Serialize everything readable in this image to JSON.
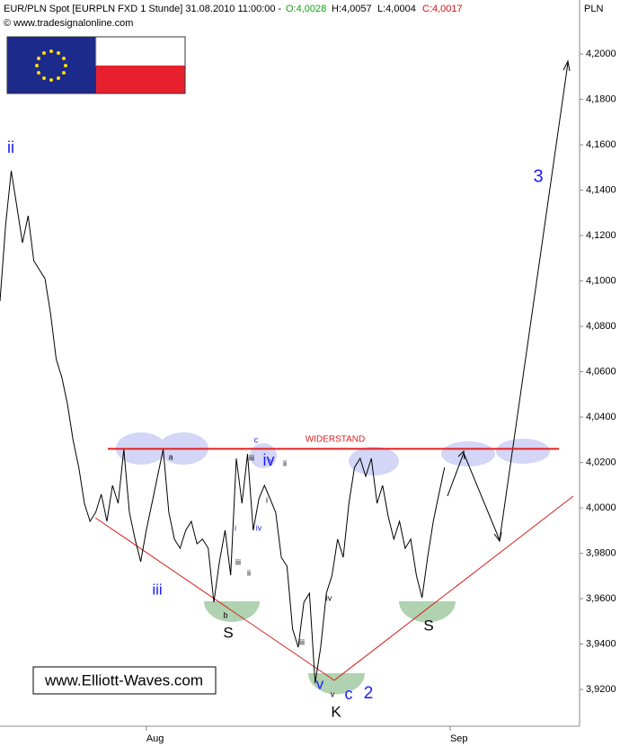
{
  "chart_data": {
    "type": "line",
    "title": "EUR/PLN Spot [EURPLN FXD  1 Stunde] 31.08.2010 11:00:00 -",
    "ohlc_labels": [
      "O:4,0028",
      "H:4,0057",
      "L:4,0004",
      "C:4,0017"
    ],
    "source": "© www.tradesignalonline.com",
    "y_unit": "PLN",
    "series": [
      {
        "name": "EUR/PLN",
        "color": "#000000",
        "values": [
          4.0911,
          4.1248,
          4.1485,
          4.1327,
          4.1168,
          4.1287,
          4.1089,
          4.105,
          4.101,
          4.0852,
          4.0654,
          4.0574,
          4.0456,
          4.0297,
          4.0178,
          4.002,
          3.9941,
          3.998,
          4.006,
          3.9941,
          4.0099,
          4.002,
          4.0258,
          3.998,
          3.9862,
          3.9763,
          3.9901,
          4.002,
          4.0139,
          4.0258,
          3.998,
          3.9862,
          3.9822,
          3.9901,
          3.9941,
          3.9842,
          3.9862,
          3.9822,
          3.9584,
          3.9763,
          3.9901,
          3.9703,
          4.0218,
          4.002,
          4.0238,
          3.9901,
          4.004,
          4.0099,
          4.004,
          3.998,
          3.9782,
          3.9743,
          3.9466,
          3.9386,
          3.9584,
          3.9624,
          3.9228,
          3.9386,
          3.9624,
          3.9703,
          3.9862,
          3.9782,
          4.002,
          4.0178,
          4.0218,
          4.0139,
          4.0218,
          4.002,
          4.0099,
          3.9961,
          3.9862,
          3.9941,
          3.9822,
          3.9862,
          3.9703,
          3.9604,
          3.9782,
          3.9941,
          4.006,
          4.0178
        ]
      }
    ],
    "resistance_level": 4.026,
    "xlim": [
      0,
      103
    ],
    "xticks": [
      {
        "value": 26,
        "label": "Aug"
      },
      {
        "value": 80,
        "label": "Sep"
      }
    ],
    "ylim": [
      3.9038,
      4.2226
    ],
    "yticks": [
      {
        "value": 3.92,
        "label": "3,9200"
      },
      {
        "value": 3.94,
        "label": "3,9400"
      },
      {
        "value": 3.96,
        "label": "3,9600"
      },
      {
        "value": 3.98,
        "label": "3,9800"
      },
      {
        "value": 4.0,
        "label": "4,0000"
      },
      {
        "value": 4.02,
        "label": "4,0200"
      },
      {
        "value": 4.04,
        "label": "4,0400"
      },
      {
        "value": 4.06,
        "label": "4,0600"
      },
      {
        "value": 4.08,
        "label": "4,0800"
      },
      {
        "value": 4.1,
        "label": "4,1000"
      },
      {
        "value": 4.12,
        "label": "4,1200"
      },
      {
        "value": 4.14,
        "label": "4,1400"
      },
      {
        "value": 4.16,
        "label": "4,1600"
      },
      {
        "value": 4.18,
        "label": "4,1800"
      },
      {
        "value": 4.2,
        "label": "4,2000"
      }
    ],
    "annotations": [
      "ii",
      "iii",
      "iv",
      "v",
      "2",
      "3",
      "S",
      "S",
      "K",
      "c",
      "a",
      "b",
      "c",
      "iii",
      "v",
      "ii",
      "i",
      "iv",
      "i",
      "iii",
      "ii",
      "iii",
      "iv",
      "v",
      "WIDERSTAND"
    ],
    "watermark": "www.Elliott-Waves.com"
  }
}
